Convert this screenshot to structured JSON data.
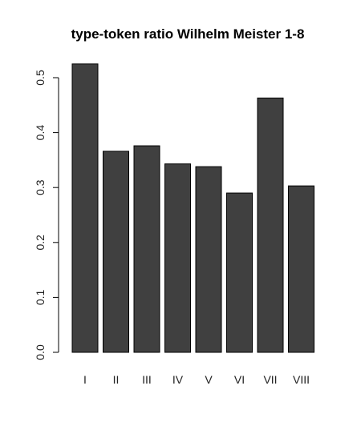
{
  "chart_data": {
    "type": "bar",
    "title": "type-token ratio Wilhelm Meister 1-8",
    "xlabel": "",
    "ylabel": "",
    "categories": [
      "I",
      "II",
      "III",
      "IV",
      "V",
      "VI",
      "VII",
      "VIII"
    ],
    "values": [
      0.525,
      0.366,
      0.376,
      0.343,
      0.338,
      0.29,
      0.463,
      0.303
    ],
    "ylim": [
      0,
      0.525
    ],
    "yticks": [
      {
        "value": 0.0,
        "label": "0.0"
      },
      {
        "value": 0.1,
        "label": "0.1"
      },
      {
        "value": 0.2,
        "label": "0.2"
      },
      {
        "value": 0.3,
        "label": "0.3"
      },
      {
        "value": 0.4,
        "label": "0.4"
      },
      {
        "value": 0.5,
        "label": "0.5"
      }
    ],
    "grid": false,
    "bar_color": "#404040"
  }
}
